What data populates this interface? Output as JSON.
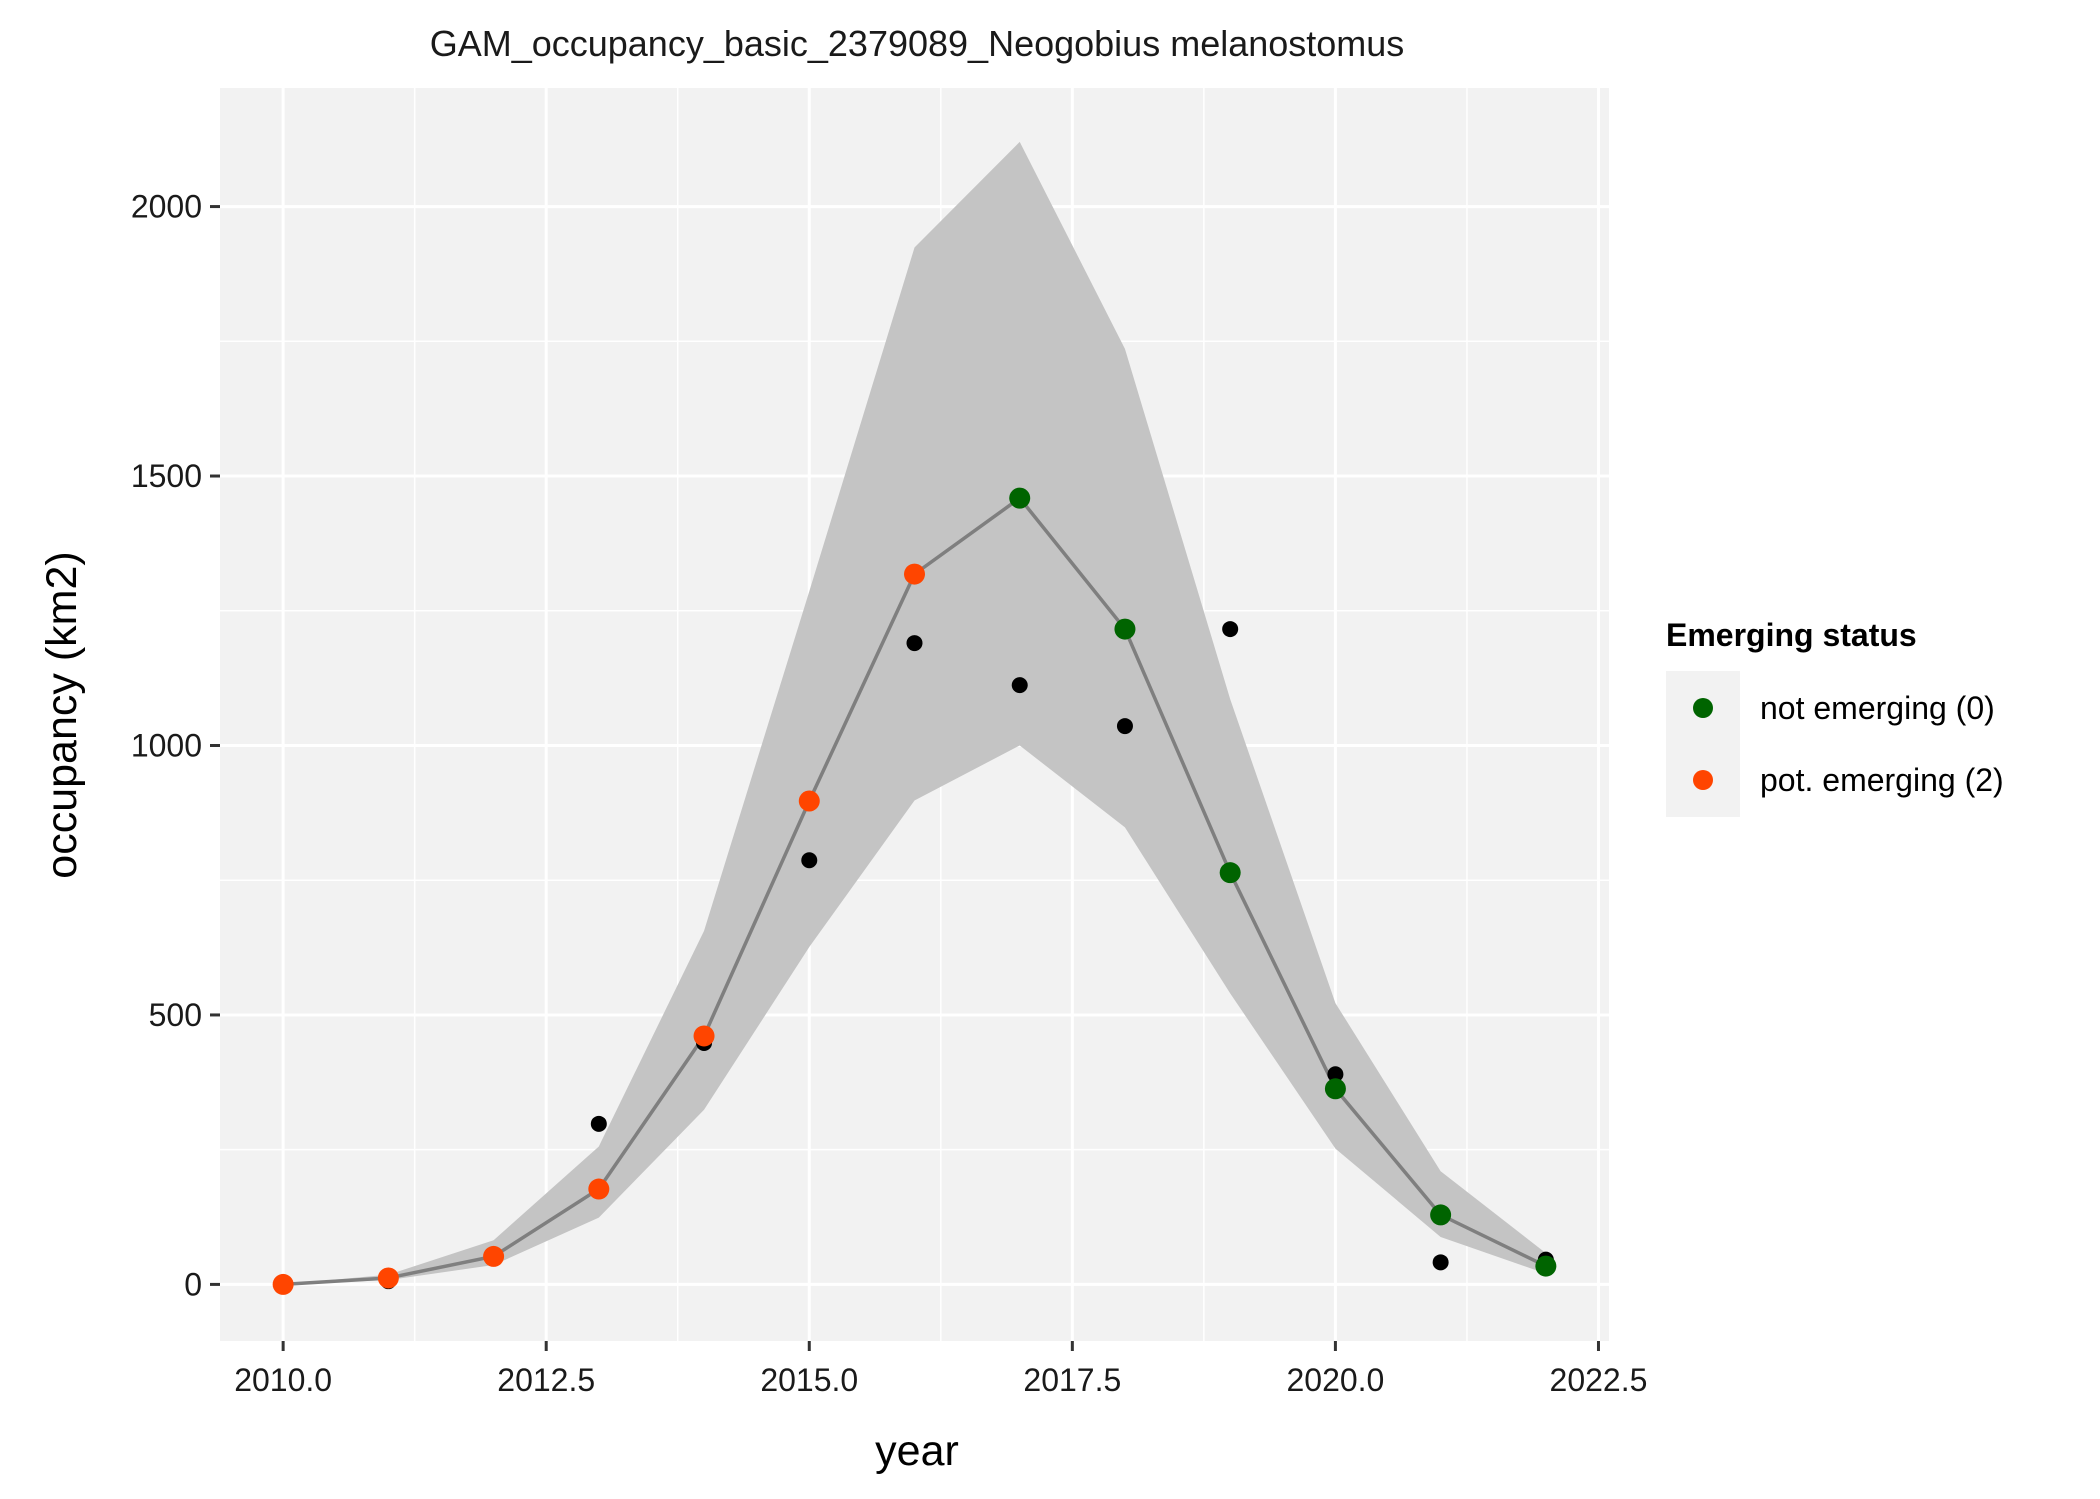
{
  "chart_data": {
    "type": "line",
    "title": "GAM_occupancy_basic_2379089_Neogobius melanostomus",
    "xlabel": "year",
    "ylabel": "occupancy (km2)",
    "xlim": [
      2009.4,
      2022.6
    ],
    "ylim": [
      -105,
      2220
    ],
    "x_ticks": [
      2010,
      2012.5,
      2015,
      2017.5,
      2020,
      2022.5
    ],
    "x_tick_labels": [
      "2010.0",
      "2012.5",
      "2015.0",
      "2017.5",
      "2020.0",
      "2022.5"
    ],
    "y_ticks": [
      0,
      500,
      1000,
      1500,
      2000
    ],
    "y_tick_labels": [
      "0",
      "500",
      "1000",
      "1500",
      "2000"
    ],
    "x": [
      2010,
      2011,
      2012,
      2013,
      2014,
      2015,
      2016,
      2017,
      2018,
      2019,
      2020,
      2021,
      2022
    ],
    "series": [
      {
        "name": "observed",
        "kind": "points",
        "color": "#000000",
        "values": [
          0,
          6,
          50,
          298,
          448,
          787,
          1190,
          1112,
          1036,
          1216,
          390,
          41,
          46
        ]
      },
      {
        "name": "fit",
        "kind": "line",
        "color": "#7f7f7f",
        "values": [
          0,
          12,
          52,
          177,
          461,
          897,
          1318,
          1459,
          1216,
          764,
          363,
          129,
          34
        ]
      },
      {
        "name": "ci",
        "kind": "ribbon",
        "color": "#c4c4c4",
        "lower": [
          0,
          8,
          36,
          124,
          324,
          626,
          898,
          1000,
          848,
          540,
          252,
          88,
          20
        ],
        "upper": [
          0,
          18,
          82,
          256,
          656,
          1286,
          1924,
          2120,
          1736,
          1086,
          522,
          210,
          58
        ]
      }
    ],
    "status": [
      2,
      2,
      2,
      2,
      2,
      2,
      2,
      0,
      0,
      0,
      0,
      0,
      0
    ],
    "legend": {
      "title": "Emerging status",
      "placement": "right",
      "items": [
        {
          "label": "not emerging (0)",
          "color": "#006400"
        },
        {
          "label": "pot. emerging (2)",
          "color": "#ff4500"
        }
      ]
    },
    "grid": true,
    "panel_color": "#f2f2f2"
  }
}
